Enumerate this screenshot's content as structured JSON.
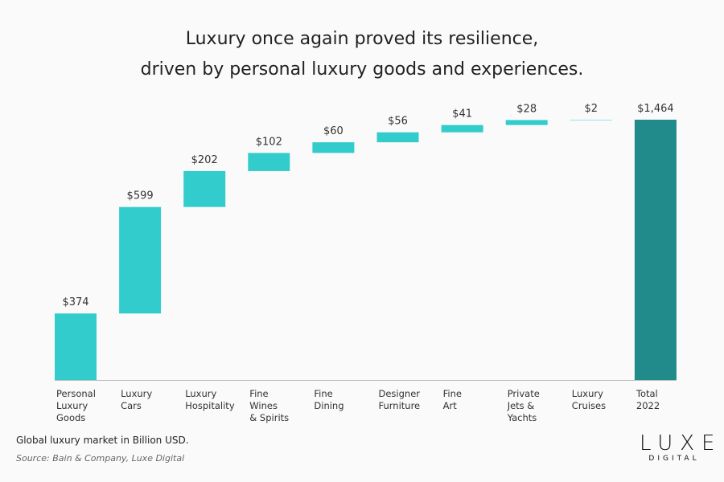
{
  "chart_data": {
    "type": "waterfall",
    "title_lines": [
      "Luxury once again proved its resilience,",
      "driven by personal luxury goods and experiences."
    ],
    "categories": [
      [
        "Personal",
        "Luxury",
        "Goods"
      ],
      [
        "Luxury",
        "Cars"
      ],
      [
        "Luxury",
        "Hospitality"
      ],
      [
        "Fine",
        "Wines",
        "& Spirits"
      ],
      [
        "Fine",
        "Dining"
      ],
      [
        "Designer",
        "Furniture"
      ],
      [
        "Fine",
        "Art"
      ],
      [
        "Private",
        "Jets &",
        "Yachts"
      ],
      [
        "Luxury",
        "Cruises"
      ],
      [
        "Total",
        "2022"
      ]
    ],
    "values": [
      374,
      599,
      202,
      102,
      60,
      56,
      41,
      28,
      2,
      1464
    ],
    "data_labels": [
      "$374",
      "$599",
      "$202",
      "$102",
      "$60",
      "$56",
      "$41",
      "$28",
      "$2",
      "$1,464"
    ],
    "total_index": 9,
    "ylim": [
      0,
      1464
    ],
    "grid": false,
    "colors": {
      "increment": "#33CCCC",
      "total": "#218A8A",
      "axis": "#bbbbbb"
    }
  },
  "footer": {
    "note": "Global luxury market in Billion USD.",
    "source": "Source: Bain & Company, Luxe Digital"
  },
  "logo": {
    "line1": "LUXE",
    "line2": "DIGITAL"
  }
}
